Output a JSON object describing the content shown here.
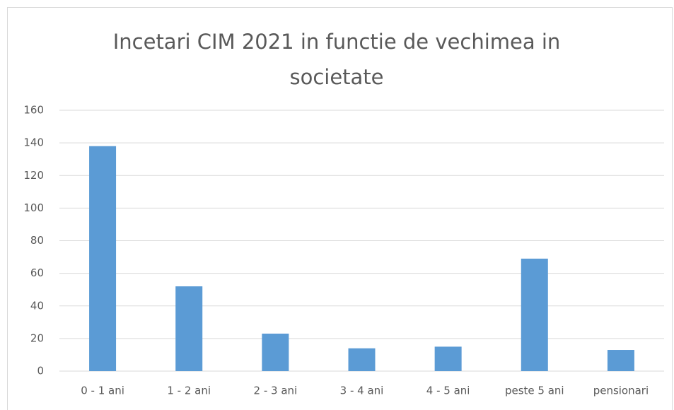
{
  "chart_data": {
    "type": "bar",
    "title": "Incetari CIM 2021 in functie de vechimea in societate",
    "categories": [
      "0 - 1 ani",
      "1 - 2 ani",
      "2 - 3 ani",
      "3 - 4 ani",
      "4 - 5 ani",
      "peste 5 ani",
      "pensionari"
    ],
    "values": [
      138,
      52,
      23,
      14,
      15,
      69,
      13
    ],
    "color": "#5b9bd5",
    "ylim": [
      0,
      160
    ],
    "yticks": [
      0,
      20,
      40,
      60,
      80,
      100,
      120,
      140,
      160
    ],
    "grid": true
  }
}
